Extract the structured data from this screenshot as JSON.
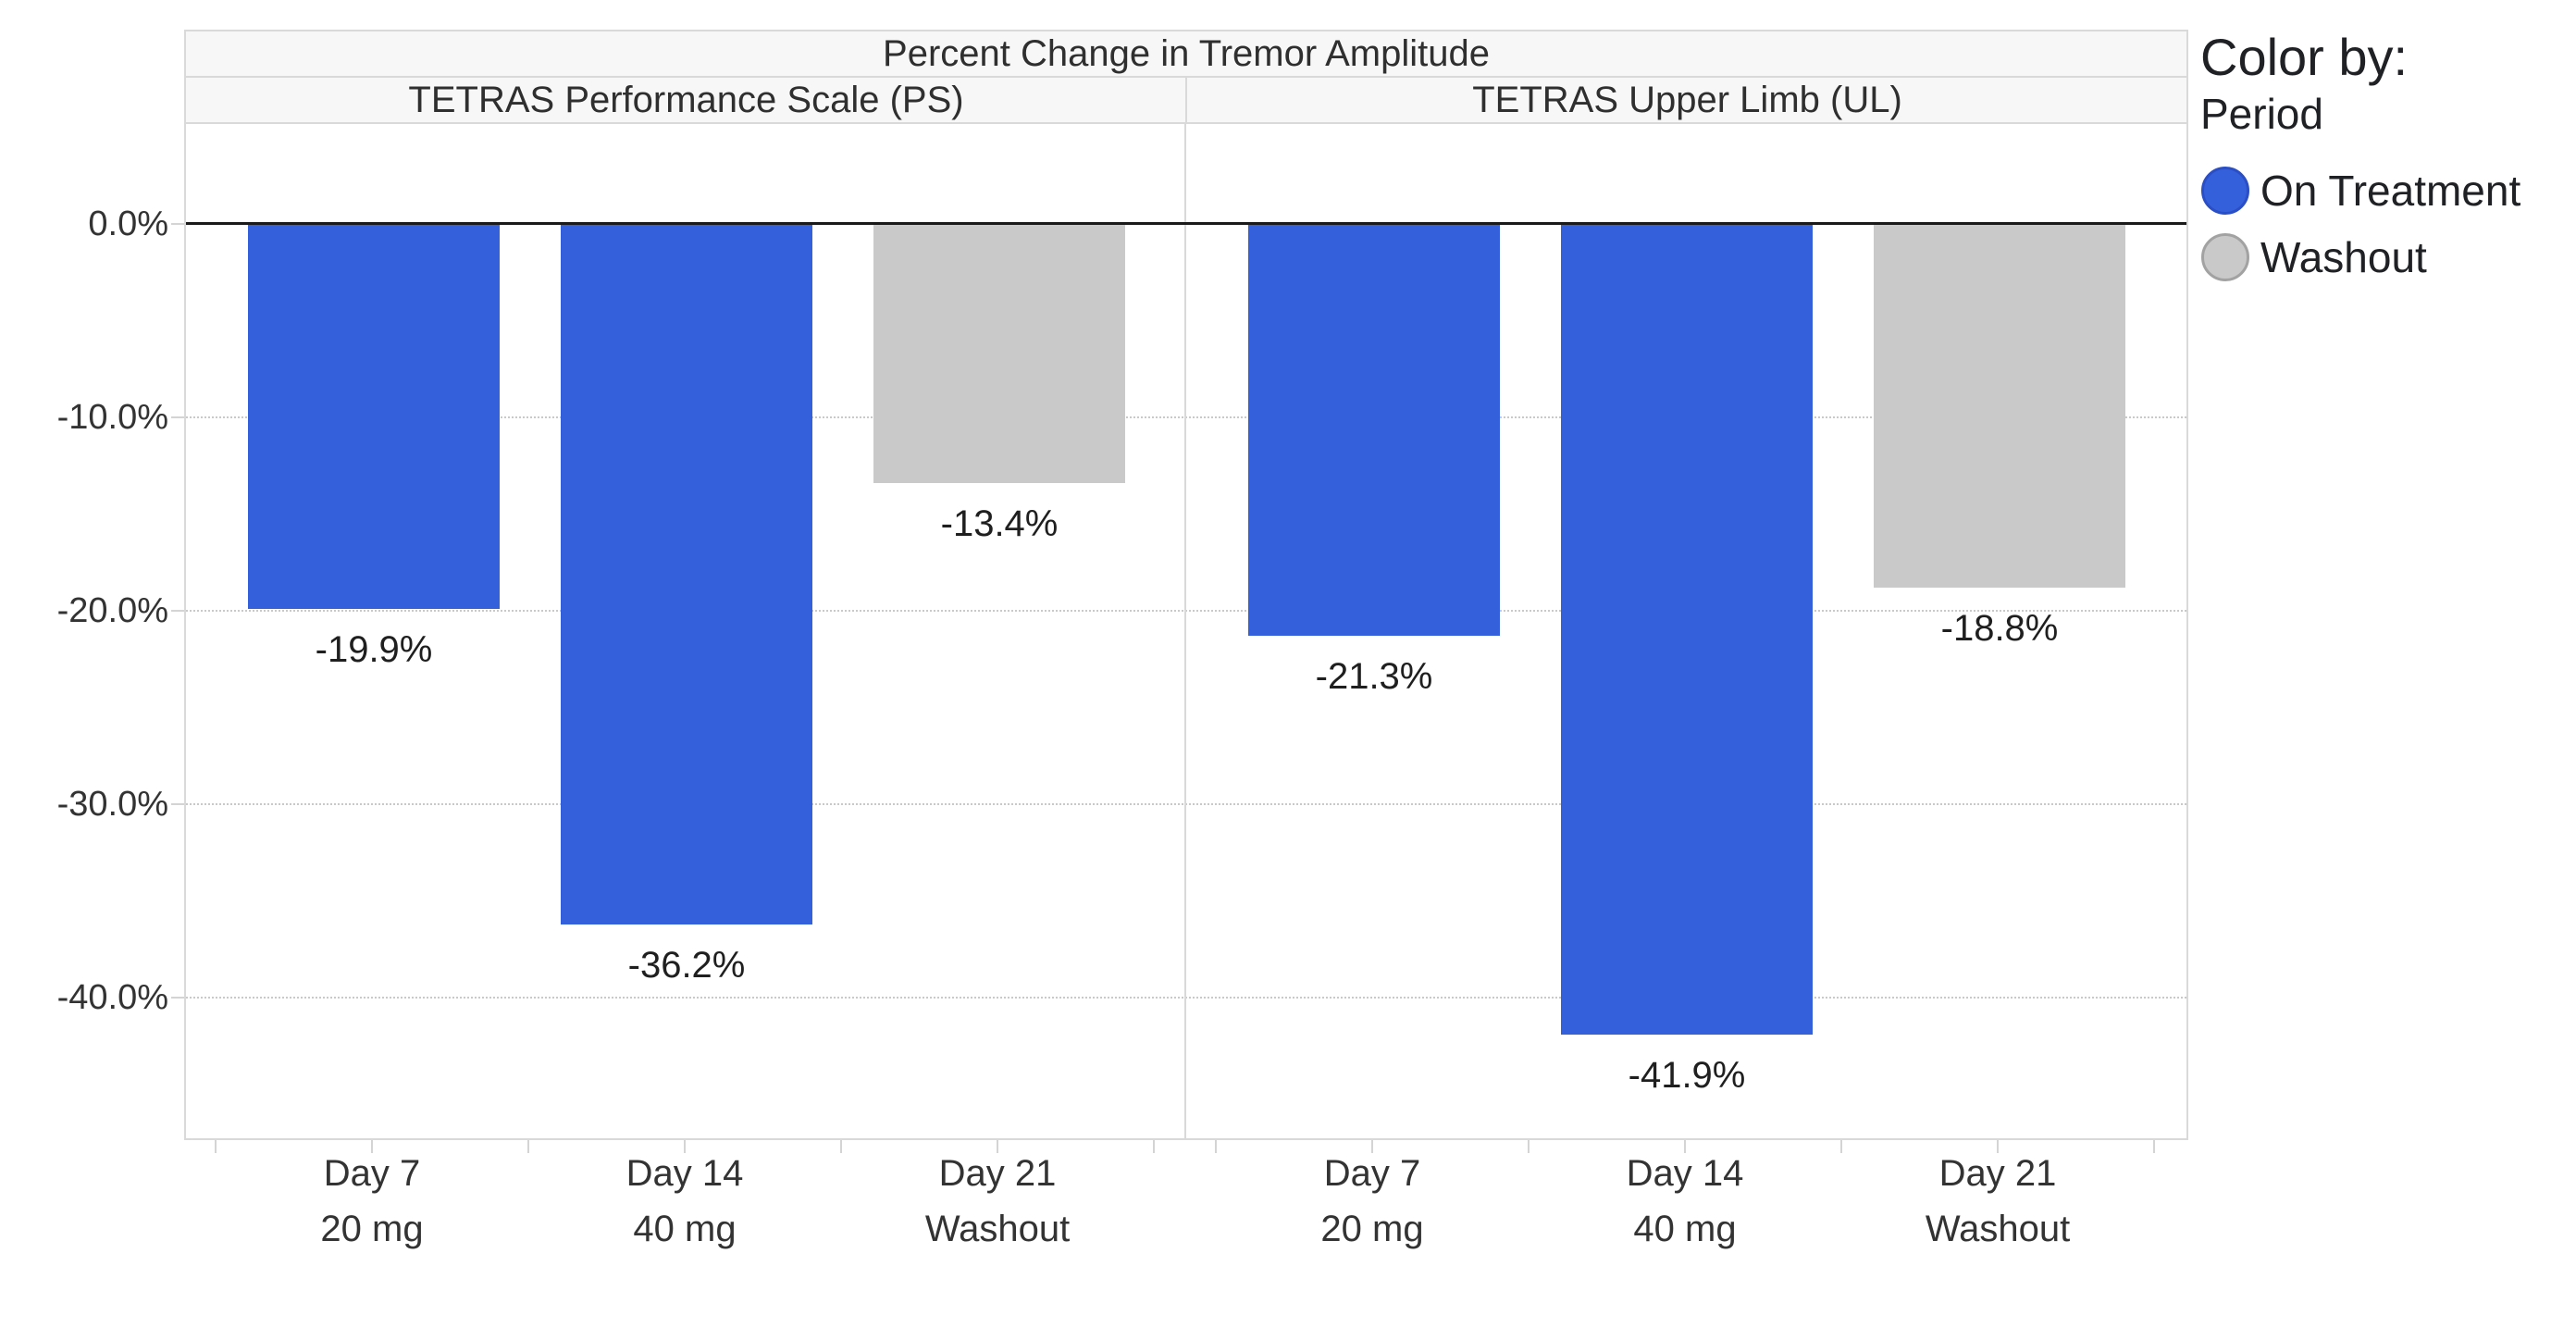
{
  "chart_data": {
    "type": "bar",
    "title": "Percent Change in Tremor Amplitude",
    "facets": [
      {
        "label": "TETRAS Performance Scale (PS)",
        "values": [
          -19.9,
          -36.2,
          -13.4
        ],
        "labels": [
          "-19.9%",
          "-36.2%",
          "-13.4%"
        ],
        "periods": [
          "On Treatment",
          "On Treatment",
          "Washout"
        ]
      },
      {
        "label": "TETRAS Upper Limb (UL)",
        "values": [
          -21.3,
          -41.9,
          -18.8
        ],
        "labels": [
          "-21.3%",
          "-41.9%",
          "-18.8%"
        ],
        "periods": [
          "On Treatment",
          "On Treatment",
          "Washout"
        ]
      }
    ],
    "categories": [
      {
        "day": "Day 7",
        "dose": "20 mg"
      },
      {
        "day": "Day 14",
        "dose": "40 mg"
      },
      {
        "day": "Day 21",
        "dose": "Washout"
      }
    ],
    "y_axis": {
      "tick_labels": [
        "0.0%",
        "-10.0%",
        "-20.0%",
        "-30.0%",
        "-40.0%"
      ],
      "tick_values": [
        0,
        -10,
        -20,
        -30,
        -40
      ],
      "grid_values": [
        -10,
        -20,
        -30,
        -40
      ],
      "ylim": [
        5.2,
        -47.4
      ],
      "grid_style": "dotted horizontal, solid black zero line"
    },
    "legend": {
      "title": "Color by:",
      "field": "Period",
      "position": "right",
      "items": [
        {
          "label": "On Treatment",
          "color": "#3560db",
          "stroke": "#2a4ec5"
        },
        {
          "label": "Washout",
          "color": "#c9c9c9",
          "stroke": "#a2a2a2"
        }
      ]
    },
    "colors": {
      "On Treatment": "#3560db",
      "Washout": "#c9c9c9"
    }
  }
}
